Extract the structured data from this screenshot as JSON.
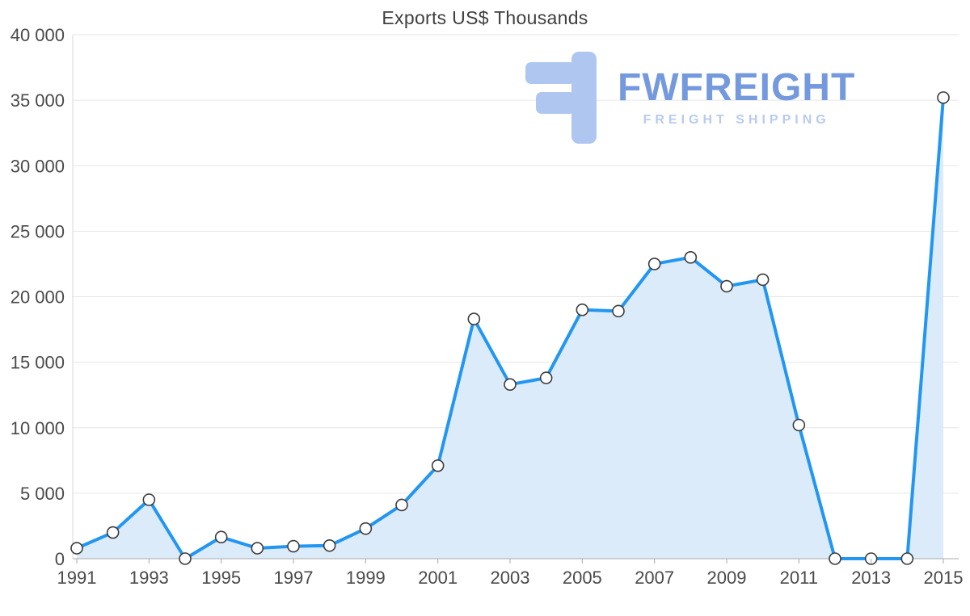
{
  "chart_data": {
    "type": "area",
    "title": "Exports US$ Thousands",
    "xlabel": "",
    "ylabel": "",
    "x": [
      1991,
      1992,
      1993,
      1994,
      1995,
      1996,
      1997,
      1998,
      1999,
      2000,
      2001,
      2002,
      2003,
      2004,
      2005,
      2006,
      2007,
      2008,
      2009,
      2010,
      2011,
      2012,
      2013,
      2014,
      2015
    ],
    "values": [
      800,
      2000,
      4500,
      0,
      1650,
      800,
      950,
      1000,
      2300,
      4100,
      7100,
      18300,
      13300,
      13800,
      19000,
      18900,
      22500,
      23000,
      20800,
      21300,
      10200,
      0,
      0,
      0,
      35200
    ],
    "ylim": [
      0,
      40000
    ],
    "ytick_interval": 5000,
    "ytick_labels": [
      "0",
      "5 000",
      "10 000",
      "15 000",
      "20 000",
      "25 000",
      "30 000",
      "35 000",
      "40 000"
    ],
    "xticks": [
      1991,
      1993,
      1995,
      1997,
      1999,
      2001,
      2003,
      2005,
      2007,
      2009,
      2011,
      2013,
      2015
    ],
    "grid": "horizontal",
    "legend": "none",
    "marker": "circle-white"
  },
  "watermark": {
    "brand": "FWFREIGHT",
    "tagline": "FREIGHT SHIPPING"
  },
  "colors": {
    "line": "#2196f3",
    "area": "#dcebf9",
    "grid": "#e6e6e6",
    "axis_text": "#4a4a4a",
    "axis_line": "#a8a8a8",
    "axis_line_light": "#dadada",
    "marker_stroke": "#3c3c3c",
    "marker_fill": "#ffffff",
    "title_text": "#3f3f3f",
    "brand_blue": "#6d94dc",
    "brand_light_blue": "#b5c9f0",
    "logo_fill": "#abc5f0"
  }
}
